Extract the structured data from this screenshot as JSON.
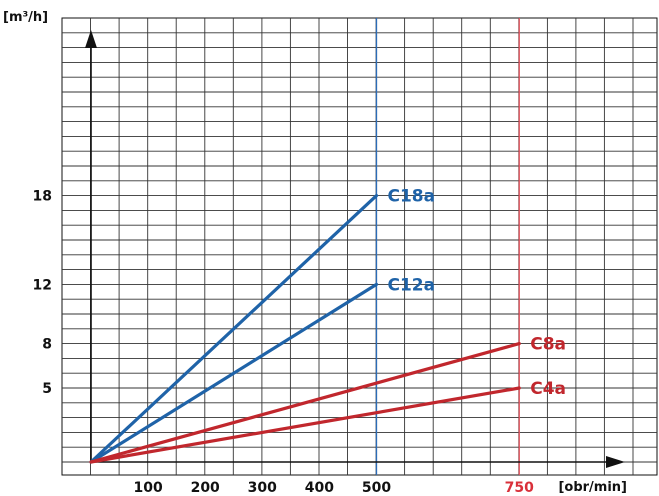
{
  "chart_data": {
    "type": "line",
    "title": "",
    "xlabel": "[obr/min]",
    "ylabel": "[m³/h]",
    "xlim": [
      0,
      950
    ],
    "ylim": [
      0,
      29
    ],
    "x_ticks": [
      100,
      200,
      300,
      400,
      500,
      750
    ],
    "x_tick_highlight": 750,
    "y_ticks": [
      5,
      8,
      12,
      18
    ],
    "grid": true,
    "vertical_markers": [
      {
        "x": 500,
        "color": "#2b6cb8"
      },
      {
        "x": 750,
        "color": "#e0505a"
      }
    ],
    "series": [
      {
        "name": "C18a",
        "color": "#1f63a8",
        "points": [
          [
            0,
            0
          ],
          [
            500,
            18
          ]
        ]
      },
      {
        "name": "C12a",
        "color": "#1f63a8",
        "points": [
          [
            0,
            0
          ],
          [
            500,
            12
          ]
        ]
      },
      {
        "name": "C8a",
        "color": "#c1272d",
        "points": [
          [
            0,
            0
          ],
          [
            750,
            8
          ]
        ]
      },
      {
        "name": "C4a",
        "color": "#c1272d",
        "points": [
          [
            0,
            0
          ],
          [
            750,
            5
          ]
        ]
      }
    ]
  }
}
